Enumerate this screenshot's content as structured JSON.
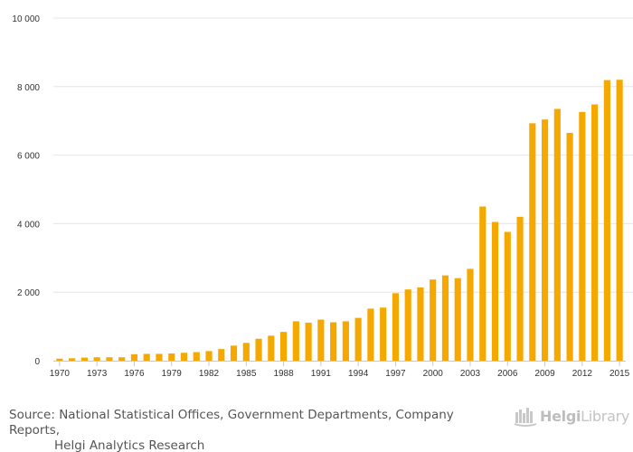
{
  "chart_data": {
    "type": "bar",
    "title": "",
    "xlabel": "",
    "ylabel": "",
    "ylim": [
      0,
      10000
    ],
    "yticks": [
      0,
      2000,
      4000,
      6000,
      8000,
      10000
    ],
    "ytick_labels": [
      "0",
      "2 000",
      "4 000",
      "6 000",
      "8 000",
      "10 000"
    ],
    "xtick_labels": [
      "1970",
      "1973",
      "1976",
      "1979",
      "1982",
      "1985",
      "1988",
      "1991",
      "1994",
      "1997",
      "2000",
      "2003",
      "2006",
      "2009",
      "2012",
      "2015"
    ],
    "bar_color": "#f5a900",
    "grid": true,
    "categories": [
      1970,
      1971,
      1972,
      1973,
      1974,
      1975,
      1976,
      1977,
      1978,
      1979,
      1980,
      1981,
      1982,
      1983,
      1984,
      1985,
      1986,
      1987,
      1988,
      1989,
      1990,
      1991,
      1992,
      1993,
      1994,
      1995,
      1996,
      1997,
      1998,
      1999,
      2000,
      2001,
      2002,
      2003,
      2004,
      2005,
      2006,
      2007,
      2008,
      2009,
      2010,
      2011,
      2012,
      2013,
      2014,
      2015
    ],
    "values": [
      60,
      70,
      90,
      100,
      100,
      100,
      190,
      200,
      200,
      210,
      230,
      250,
      280,
      340,
      440,
      520,
      640,
      730,
      840,
      1150,
      1110,
      1200,
      1120,
      1150,
      1250,
      1520,
      1550,
      1970,
      2080,
      2140,
      2370,
      2490,
      2410,
      2680,
      4500,
      4050,
      3760,
      4200,
      6930,
      7040,
      7350,
      6650,
      7260,
      7480,
      8190,
      8200
    ]
  },
  "source": {
    "line1": "Source: National Statistical Offices, Government Departments, Company Reports,",
    "line2": "Helgi Analytics Research"
  },
  "logo": {
    "icon": "helgi-library-icon",
    "brand_bold": "Helgi",
    "brand_light": "Library"
  }
}
